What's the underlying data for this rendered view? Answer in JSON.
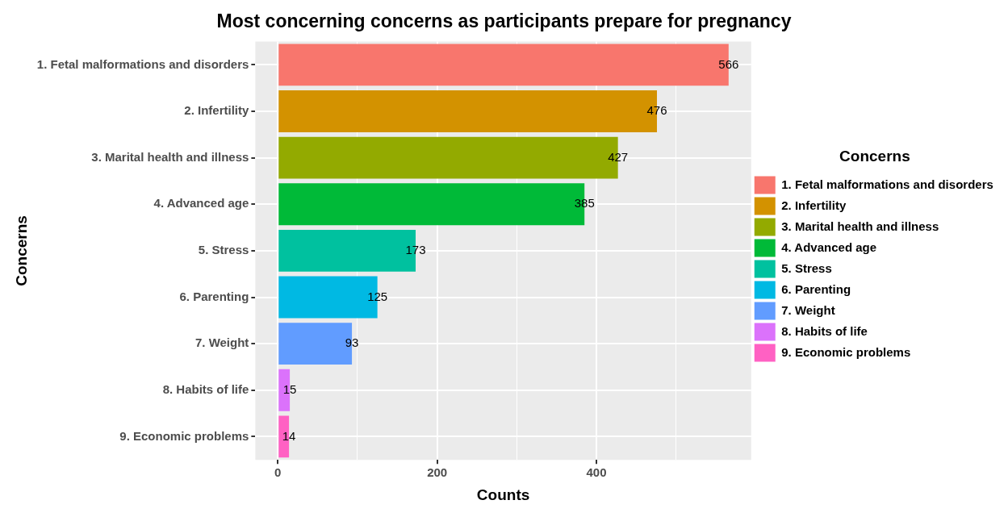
{
  "chart_data": {
    "type": "bar",
    "orientation": "horizontal",
    "title": "Most concerning concerns as participants prepare for pregnancy",
    "xlabel": "Counts",
    "ylabel": "Concerns",
    "legend_title": "Concerns",
    "legend": "right",
    "categories": [
      "1. Fetal malformations and disorders",
      "2. Infertility",
      "3. Marital health and illness",
      "4. Advanced age",
      "5. Stress",
      "6. Parenting",
      "7. Weight",
      "8. Habits of life",
      "9. Economic problems"
    ],
    "series": [
      {
        "name": "1. Fetal malformations and disorders",
        "color": "#f8766d",
        "values": [
          566,
          null,
          null,
          null,
          null,
          null,
          null,
          null,
          null
        ]
      },
      {
        "name": "2. Infertility",
        "color": "#d39200",
        "values": [
          null,
          476,
          null,
          null,
          null,
          null,
          null,
          null,
          null
        ]
      },
      {
        "name": "3. Marital health and illness",
        "color": "#93aa00",
        "values": [
          null,
          null,
          427,
          null,
          null,
          null,
          null,
          null,
          null
        ]
      },
      {
        "name": "4. Advanced age",
        "color": "#00ba38",
        "values": [
          null,
          null,
          null,
          385,
          null,
          null,
          null,
          null,
          null
        ]
      },
      {
        "name": "5. Stress",
        "color": "#00c19f",
        "values": [
          null,
          null,
          null,
          null,
          173,
          null,
          null,
          null,
          null
        ]
      },
      {
        "name": "6. Parenting",
        "color": "#00b9e3",
        "values": [
          null,
          null,
          null,
          null,
          null,
          125,
          null,
          null,
          null
        ]
      },
      {
        "name": "7. Weight",
        "color": "#619cff",
        "values": [
          null,
          null,
          null,
          null,
          null,
          null,
          93,
          null,
          null
        ]
      },
      {
        "name": "8. Habits of life",
        "color": "#db72fb",
        "values": [
          null,
          null,
          null,
          null,
          null,
          null,
          null,
          15,
          null
        ]
      },
      {
        "name": "9. Economic problems",
        "color": "#ff61c3",
        "values": [
          null,
          null,
          null,
          null,
          null,
          null,
          null,
          null,
          14
        ]
      }
    ],
    "xlim": [
      -28.3,
      594.3
    ],
    "xticks": [
      0,
      {
        "value": 100,
        "label": null
      },
      200,
      {
        "value": 300,
        "label": null
      },
      400,
      {
        "value": 500,
        "label": null
      }
    ],
    "grid": true,
    "data_labels": true
  }
}
